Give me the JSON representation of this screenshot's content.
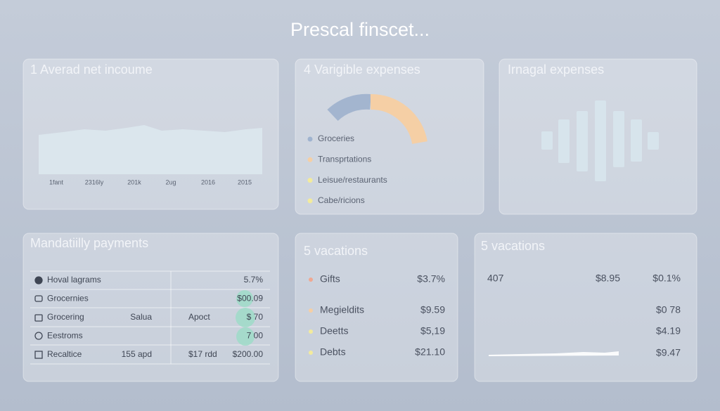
{
  "header": {
    "title": "Prescal finscet..."
  },
  "panels": [
    {
      "title": "1  Averad net incoume",
      "x_labels": [
        "1fant",
        "2316ly",
        "201k",
        "2ug",
        "2016",
        "2015"
      ]
    },
    {
      "title": "4  Varigible expenses",
      "legend": [
        "Groceries",
        "Transprtations",
        "Leisue/restaurants",
        "Cabe/ricions"
      ]
    },
    {
      "title": "Irnagal expenses"
    },
    {
      "title": "Mandatiilly payments",
      "rows": [
        [
          "Hoval lagrams",
          "5.7%"
        ],
        [
          "Grocernies",
          "$00.09"
        ],
        [
          "Grocering",
          "Salua",
          "Apoct",
          "$ 70"
        ],
        [
          "Eestroms",
          "7 00"
        ],
        [
          "Recaltice",
          "155 apd",
          "$17 rdd",
          "$200.00"
        ]
      ]
    },
    {
      "title": "5  vacations",
      "rows": [
        [
          "Gifts",
          "$3.7%"
        ],
        [
          "Megieldits",
          "$9.59"
        ],
        [
          "Deetts",
          "$5,19"
        ],
        [
          "Debts",
          "$21.10"
        ]
      ]
    },
    {
      "title": "5  vacations",
      "rows": [
        [
          "407",
          "$8.95",
          "$0.1%"
        ],
        [
          "$0 78"
        ],
        [
          "$4.19"
        ],
        [
          "$9.47"
        ]
      ]
    }
  ]
}
